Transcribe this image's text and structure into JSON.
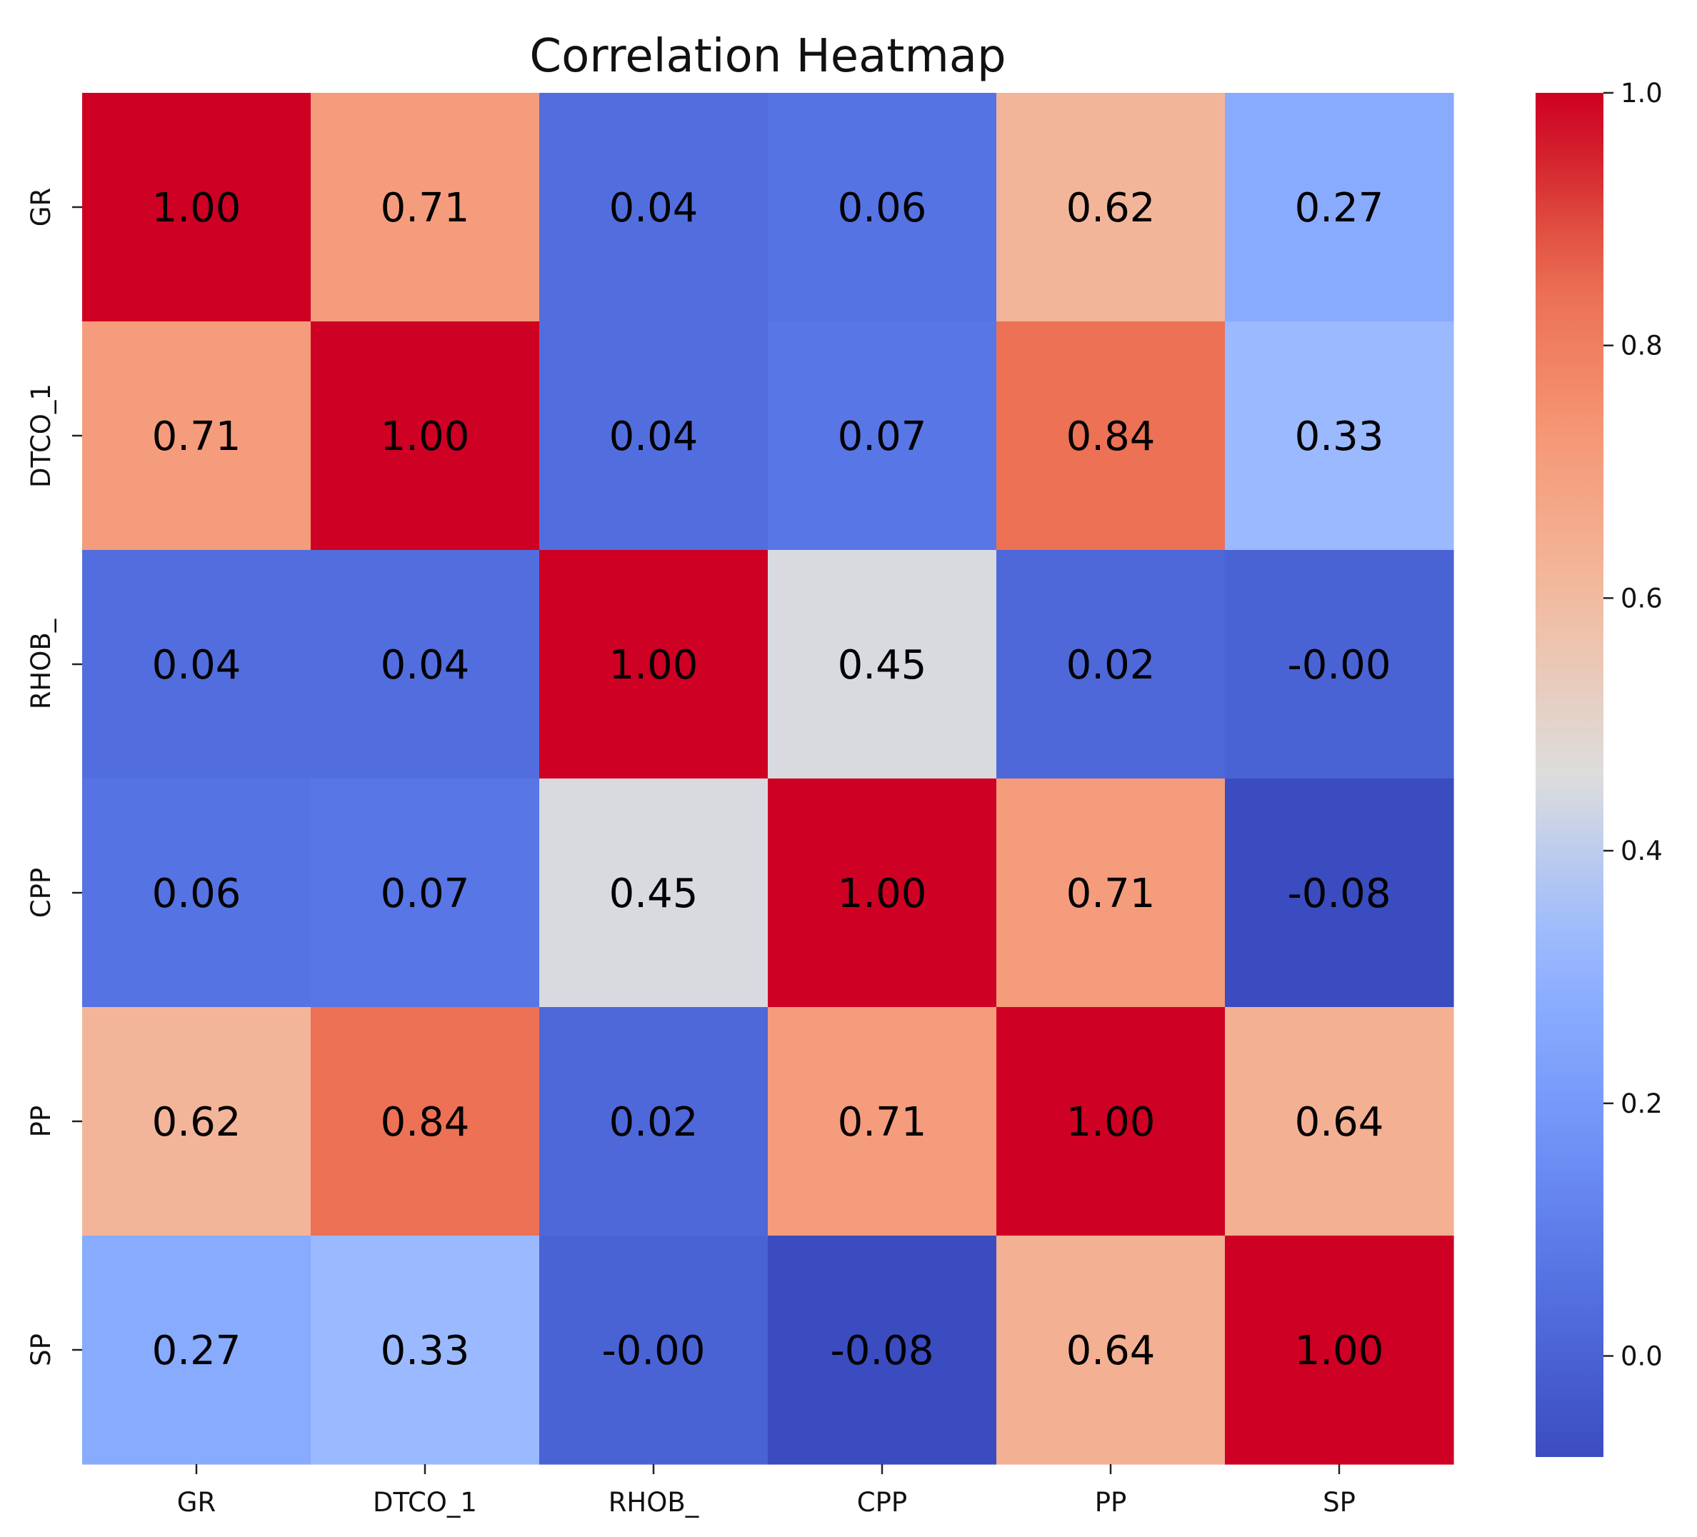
{
  "chart_data": {
    "type": "heatmap",
    "title": "Correlation Heatmap",
    "row_labels": [
      "GR",
      "DTCO_1",
      "RHOB_",
      "CPP",
      "PP",
      "SP"
    ],
    "col_labels": [
      "GR",
      "DTCO_1",
      "RHOB_",
      "CPP",
      "PP",
      "SP"
    ],
    "values": [
      [
        1.0,
        0.71,
        0.04,
        0.06,
        0.62,
        0.27
      ],
      [
        0.71,
        1.0,
        0.04,
        0.07,
        0.84,
        0.33
      ],
      [
        0.04,
        0.04,
        1.0,
        0.45,
        0.02,
        -0.0
      ],
      [
        0.06,
        0.07,
        0.45,
        1.0,
        0.71,
        -0.08
      ],
      [
        0.62,
        0.84,
        0.02,
        0.71,
        1.0,
        0.64
      ],
      [
        0.27,
        0.33,
        -0.0,
        -0.08,
        0.64,
        1.0
      ]
    ],
    "cell_text": [
      [
        "1.00",
        "0.71",
        "0.04",
        "0.06",
        "0.62",
        "0.27"
      ],
      [
        "0.71",
        "1.00",
        "0.04",
        "0.07",
        "0.84",
        "0.33"
      ],
      [
        "0.04",
        "0.04",
        "1.00",
        "0.45",
        "0.02",
        "-0.00"
      ],
      [
        "0.06",
        "0.07",
        "0.45",
        "1.00",
        "0.71",
        "-0.08"
      ],
      [
        "0.62",
        "0.84",
        "0.02",
        "0.71",
        "1.00",
        "0.64"
      ],
      [
        "0.27",
        "0.33",
        "-0.00",
        "-0.08",
        "0.64",
        "1.00"
      ]
    ],
    "colormap": "coolwarm",
    "colorbar": {
      "vmin": -0.08,
      "vmax": 1.0,
      "ticks": [
        0.0,
        0.2,
        0.4,
        0.6,
        0.8,
        1.0
      ],
      "tick_labels": [
        "0.0",
        "0.2",
        "0.4",
        "0.6",
        "0.8",
        "1.0"
      ],
      "placement": "right"
    }
  }
}
